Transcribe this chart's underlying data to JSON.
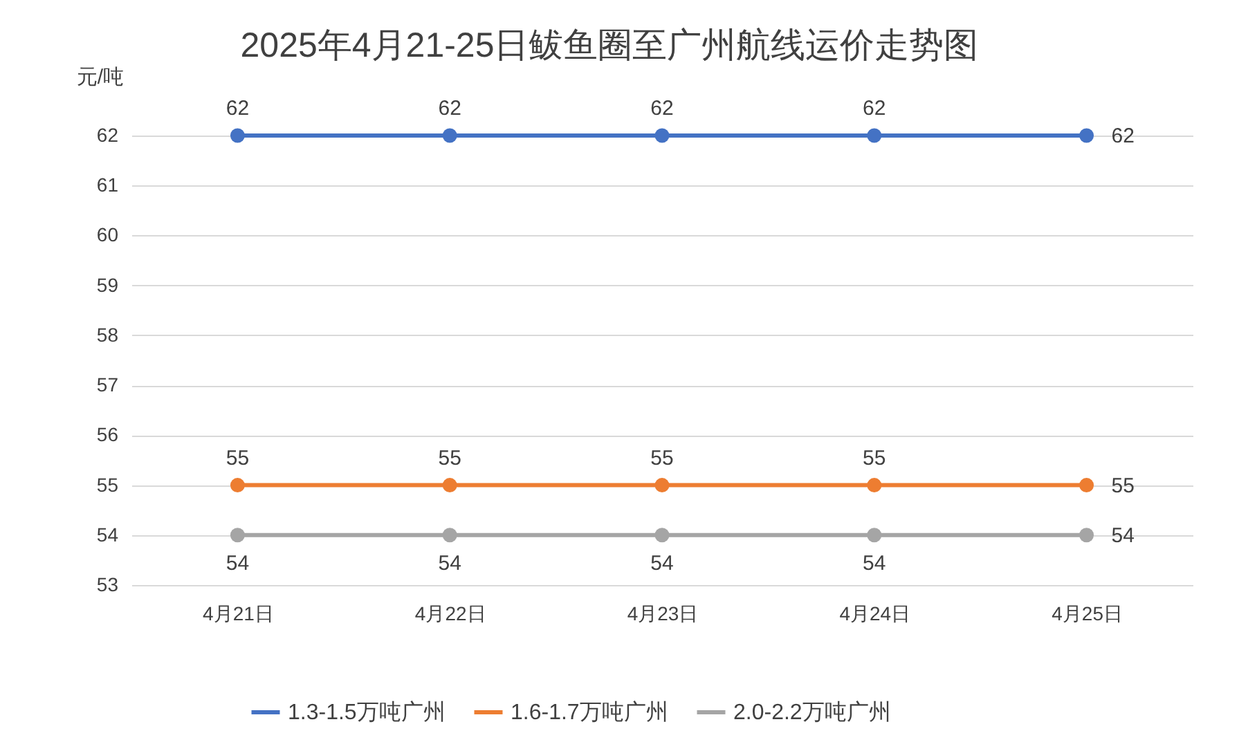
{
  "chart_data": {
    "type": "line",
    "title": "2025年4月21-25日鲅鱼圈至广州航线运价走势图",
    "ylabel": "元/吨",
    "categories": [
      "4月21日",
      "4月22日",
      "4月23日",
      "4月24日",
      "4月25日"
    ],
    "series": [
      {
        "name": "1.3-1.5万吨广州",
        "color": "#4472c4",
        "values": [
          62,
          62,
          62,
          62,
          62
        ]
      },
      {
        "name": "1.6-1.7万吨广州",
        "color": "#ed7d31",
        "values": [
          55,
          55,
          55,
          55,
          55
        ]
      },
      {
        "name": "2.0-2.2万吨广州",
        "color": "#a5a5a5",
        "values": [
          54,
          54,
          54,
          54,
          54
        ]
      }
    ],
    "ylim": [
      53,
      62
    ],
    "yticks": [
      53,
      54,
      55,
      56,
      57,
      58,
      59,
      60,
      61,
      62
    ],
    "grid": "y",
    "legend": "bottom",
    "marker": "circle",
    "line_style": "solid",
    "data_labels": true
  }
}
